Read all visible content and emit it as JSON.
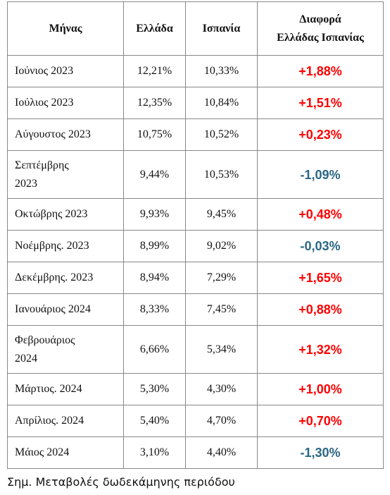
{
  "table": {
    "header": [
      "Μήνας",
      "Ελλάδα",
      "Ισπανία",
      "Διαφορά\nΕλλάδας Ισπανίας"
    ],
    "rows": [
      {
        "month": "Ιούνιος 2023",
        "greece": "12,21%",
        "spain": "10,33%",
        "diff": "+1,88%",
        "color": "#ff0000"
      },
      {
        "month": "Ιούλιος 2023",
        "greece": "12,35%",
        "spain": "10,84%",
        "diff": "+1,51%",
        "color": "#ff0000"
      },
      {
        "month": "Αύγουστος 2023",
        "greece": "10,75%",
        "spain": "10,52%",
        "diff": "+0,23%",
        "color": "#ff0000"
      },
      {
        "month": "Σεπτέμβρης\n2023",
        "greece": "9,44%",
        "spain": "10,53%",
        "diff": "-1,09%",
        "color": "#2a6685"
      },
      {
        "month": "Οκτώβρης 2023",
        "greece": "9,93%",
        "spain": "9,45%",
        "diff": "+0,48%",
        "color": "#ff0000"
      },
      {
        "month": "Νοέμβρης. 2023",
        "greece": "8,99%",
        "spain": "9,02%",
        "diff": "-0,03%",
        "color": "#2a6685"
      },
      {
        "month": "Δεκέμβρης. 2023",
        "greece": "8,94%",
        "spain": "7,29%",
        "diff": "+1,65%",
        "color": "#ff0000"
      },
      {
        "month": "Ιανουάριος 2024",
        "greece": "8,33%",
        "spain": "7,45%",
        "diff": "+0,88%",
        "color": "#ff0000"
      },
      {
        "month": "Φεβρουάριος\n2024",
        "greece": "6,66%",
        "spain": "5,34%",
        "diff": "+1,32%",
        "color": "#ff0000"
      },
      {
        "month": "Μάρτιος. 2024",
        "greece": "5,30%",
        "spain": "4,30%",
        "diff": "+1,00%",
        "color": "#ff0000"
      },
      {
        "month": "Απρίλιος. 2024",
        "greece": "5,40%",
        "spain": "4,70%",
        "diff": "+0,70%",
        "color": "#ff0000"
      },
      {
        "month": "Μάιος 2024",
        "greece": "3,10%",
        "spain": "4,40%",
        "diff": "-1,30%",
        "color": "#2a6685"
      }
    ]
  },
  "note": "Σημ. Μεταβολές δωδεκάμηνης περιόδου"
}
